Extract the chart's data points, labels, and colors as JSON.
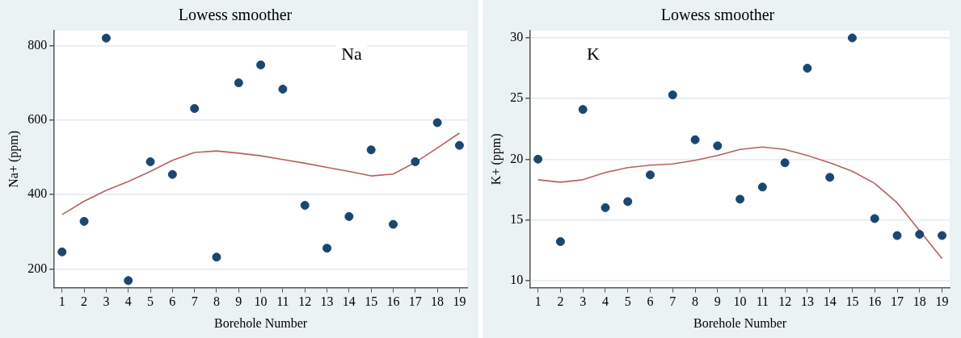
{
  "chart_data": [
    {
      "type": "scatter",
      "title": "Lowess smoother",
      "xlabel": "Borehole Number",
      "ylabel": "Na+ (ppm)",
      "annotations": [
        "Na"
      ],
      "x": [
        1,
        2,
        3,
        4,
        5,
        6,
        7,
        8,
        9,
        10,
        11,
        12,
        13,
        14,
        15,
        16,
        17,
        18,
        19
      ],
      "series": [
        {
          "color": "#1a476f",
          "marker": "circle",
          "values": [
            246,
            328,
            820,
            169,
            488,
            454,
            631,
            232,
            700,
            748,
            683,
            371,
            256,
            341,
            520,
            320,
            488,
            593,
            532
          ]
        },
        {
          "type": "line",
          "marker": "none",
          "color": "#b5605f",
          "values": [
            346,
            382,
            411,
            435,
            462,
            492,
            513,
            517,
            511,
            504,
            494,
            484,
            473,
            462,
            450,
            455,
            486,
            525,
            565
          ]
        }
      ],
      "xlim": [
        0.65,
        19.35
      ],
      "xticks": [
        1,
        2,
        3,
        4,
        5,
        6,
        7,
        8,
        9,
        10,
        11,
        12,
        13,
        14,
        15,
        16,
        17,
        18,
        19
      ],
      "ylim": [
        150,
        840
      ],
      "yticks": [
        200,
        400,
        600,
        800
      ],
      "grid": "y",
      "legend": false
    },
    {
      "type": "scatter",
      "title": "Lowess smoother",
      "xlabel": "Borehole Number",
      "ylabel": "K+ (ppm)",
      "annotations": [
        "K"
      ],
      "x": [
        1,
        2,
        3,
        4,
        5,
        6,
        7,
        8,
        9,
        10,
        11,
        12,
        13,
        14,
        15,
        16,
        17,
        18,
        19
      ],
      "series": [
        {
          "color": "#1a476f",
          "marker": "circle",
          "values": [
            20.0,
            13.2,
            24.1,
            16.0,
            16.5,
            18.7,
            25.3,
            21.6,
            21.1,
            16.7,
            17.7,
            19.7,
            27.5,
            18.5,
            30.0,
            15.1,
            13.7,
            13.8,
            13.7
          ]
        },
        {
          "type": "line",
          "marker": "none",
          "color": "#b5605f",
          "values": [
            18.3,
            18.1,
            18.3,
            18.9,
            19.3,
            19.5,
            19.6,
            19.9,
            20.3,
            20.8,
            21.0,
            20.8,
            20.3,
            19.7,
            19.0,
            18.0,
            16.4,
            14.1,
            11.8
          ]
        }
      ],
      "xlim": [
        0.66,
        19.34
      ],
      "xticks": [
        1,
        2,
        3,
        4,
        5,
        6,
        7,
        8,
        9,
        10,
        11,
        12,
        13,
        14,
        15,
        16,
        17,
        18,
        19
      ],
      "ylim": [
        9.4,
        30.6
      ],
      "yticks": [
        10,
        15,
        20,
        25,
        30
      ],
      "grid": "y",
      "legend": false
    }
  ]
}
